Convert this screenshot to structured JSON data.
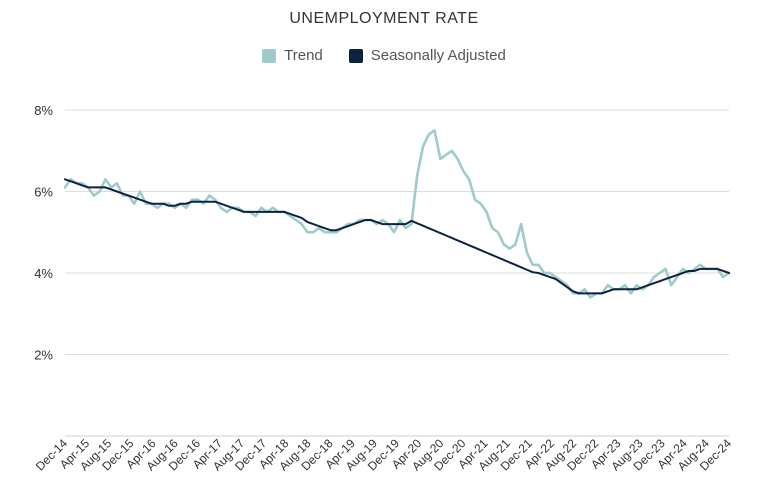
{
  "chart_data": {
    "type": "line",
    "title": "UNEMPLOYMENT RATE",
    "xlabel": "",
    "ylabel": "",
    "ylim": [
      0,
      8
    ],
    "y_ticks": [
      {
        "value": 2,
        "label": "2%"
      },
      {
        "value": 4,
        "label": "4%"
      },
      {
        "value": 6,
        "label": "6%"
      },
      {
        "value": 8,
        "label": "8%"
      }
    ],
    "x_tick_labels": [
      "Dec-14",
      "Apr-15",
      "Aug-15",
      "Dec-15",
      "Apr-16",
      "Aug-16",
      "Dec-16",
      "Apr-17",
      "Aug-17",
      "Dec-17",
      "Apr-18",
      "Aug-18",
      "Dec-18",
      "Apr-19",
      "Aug-19",
      "Dec-19",
      "Apr-20",
      "Aug-20",
      "Dec-20",
      "Apr-21",
      "Aug-21",
      "Dec-21",
      "Apr-22",
      "Aug-22",
      "Dec-22",
      "Apr-23",
      "Aug-23",
      "Dec-23",
      "Apr-24",
      "Aug-24",
      "Dec-24"
    ],
    "x_start": "Dec-14",
    "x_step_months": 1,
    "grid": true,
    "legend_position": "top-center",
    "series": [
      {
        "name": "Trend",
        "color": "#9fcbcc",
        "values": [
          6.1,
          6.3,
          6.2,
          6.2,
          6.1,
          5.9,
          6.0,
          6.3,
          6.1,
          6.2,
          5.9,
          5.9,
          5.7,
          6.0,
          5.7,
          5.7,
          5.6,
          5.7,
          5.7,
          5.6,
          5.7,
          5.6,
          5.8,
          5.8,
          5.7,
          5.9,
          5.8,
          5.6,
          5.5,
          5.6,
          5.6,
          5.5,
          5.5,
          5.4,
          5.6,
          5.5,
          5.6,
          5.5,
          5.5,
          5.4,
          5.3,
          5.2,
          5.0,
          5.0,
          5.1,
          5.0,
          5.0,
          5.0,
          5.1,
          5.2,
          5.2,
          5.3,
          5.3,
          5.3,
          5.2,
          5.3,
          5.2,
          5.0,
          5.3,
          5.1,
          5.2,
          6.4,
          7.1,
          7.4,
          7.5,
          6.8,
          6.9,
          7.0,
          6.8,
          6.5,
          6.3,
          5.8,
          5.7,
          5.5,
          5.1,
          5.0,
          4.7,
          4.6,
          4.7,
          5.2,
          4.5,
          4.2,
          4.2,
          4.0,
          4.0,
          3.9,
          3.8,
          3.7,
          3.5,
          3.5,
          3.6,
          3.4,
          3.5,
          3.5,
          3.7,
          3.6,
          3.6,
          3.7,
          3.5,
          3.7,
          3.6,
          3.7,
          3.9,
          4.0,
          4.1,
          3.7,
          3.9,
          4.1,
          4.0,
          4.1,
          4.2,
          4.1,
          4.1,
          4.1,
          3.9,
          4.0
        ]
      },
      {
        "name": "Seasonally Adjusted",
        "color": "#0d2240",
        "values": [
          6.3,
          6.25,
          6.2,
          6.15,
          6.1,
          6.1,
          6.1,
          6.1,
          6.05,
          6.0,
          5.95,
          5.9,
          5.85,
          5.8,
          5.75,
          5.7,
          5.7,
          5.7,
          5.65,
          5.65,
          5.7,
          5.7,
          5.75,
          5.75,
          5.75,
          5.75,
          5.75,
          5.7,
          5.65,
          5.6,
          5.55,
          5.5,
          5.5,
          5.5,
          5.5,
          5.5,
          5.5,
          5.5,
          5.5,
          5.45,
          5.4,
          5.35,
          5.25,
          5.2,
          5.15,
          5.1,
          5.05,
          5.05,
          5.1,
          5.15,
          5.2,
          5.25,
          5.3,
          5.3,
          5.25,
          5.2,
          5.2,
          5.2,
          5.2,
          5.2,
          5.28,
          5.22,
          5.16,
          5.1,
          5.04,
          4.98,
          4.92,
          4.86,
          4.8,
          4.74,
          4.68,
          4.62,
          4.56,
          4.5,
          4.44,
          4.38,
          4.32,
          4.26,
          4.2,
          4.14,
          4.08,
          4.02,
          4.0,
          3.95,
          3.9,
          3.85,
          3.75,
          3.65,
          3.55,
          3.5,
          3.5,
          3.5,
          3.5,
          3.5,
          3.55,
          3.6,
          3.6,
          3.6,
          3.6,
          3.6,
          3.65,
          3.7,
          3.75,
          3.8,
          3.85,
          3.9,
          3.95,
          4.0,
          4.05,
          4.05,
          4.1,
          4.1,
          4.1,
          4.1,
          4.05,
          4.0
        ]
      }
    ]
  }
}
